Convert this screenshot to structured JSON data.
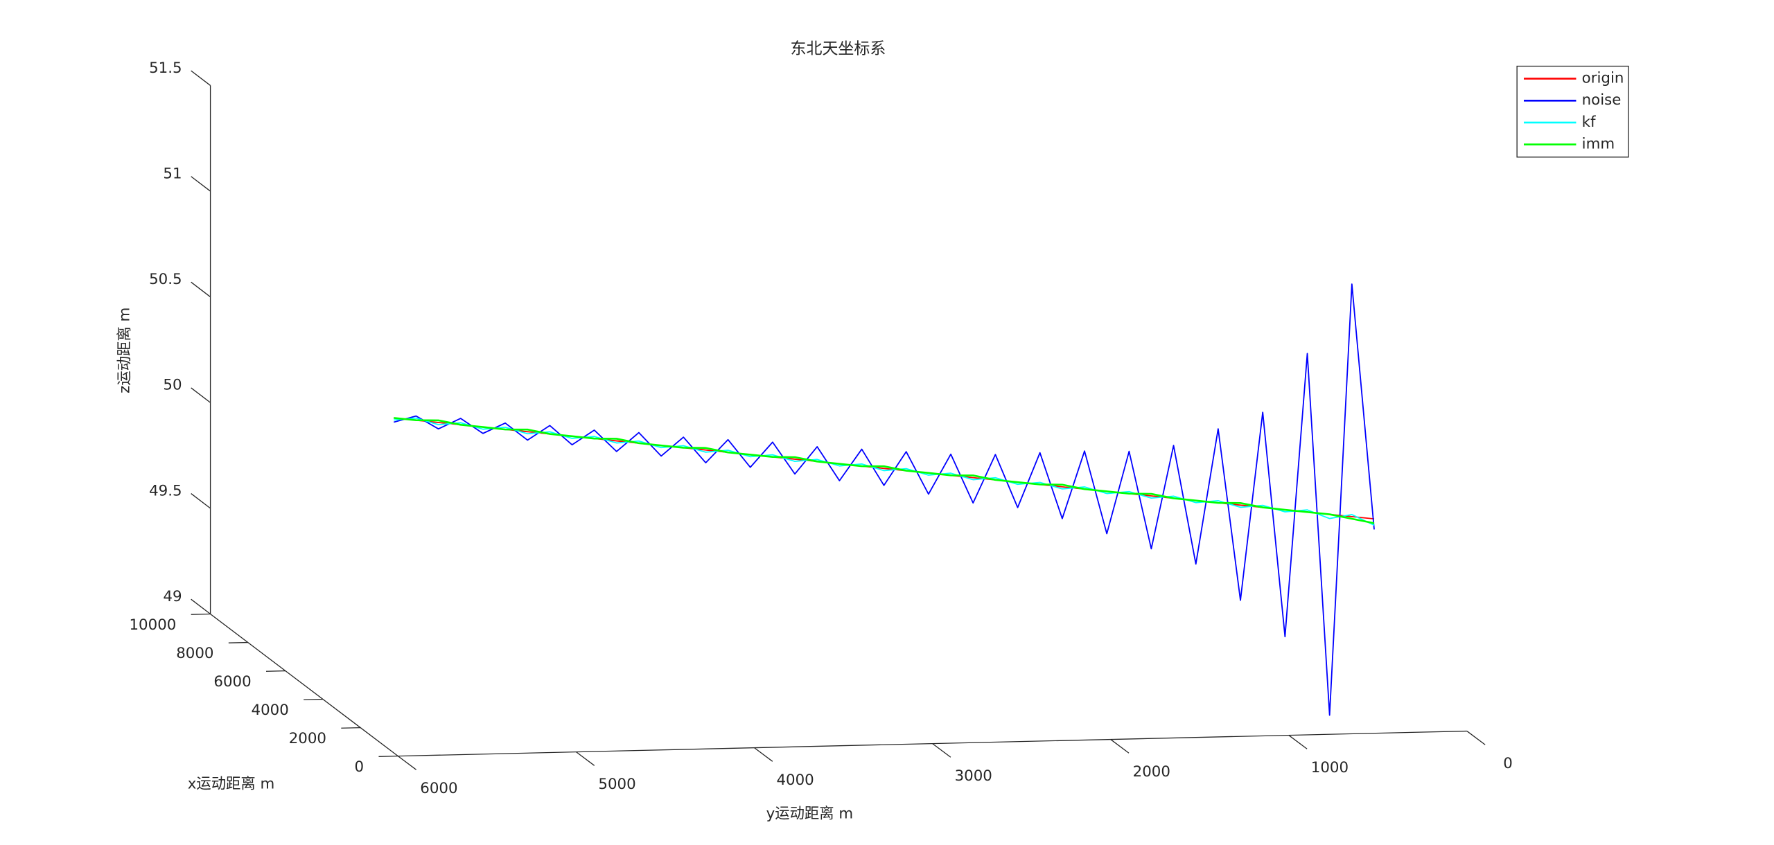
{
  "chart_data": {
    "type": "line3d",
    "title": "东北天坐标系",
    "xlabel": "x运动距离 m",
    "ylabel": "y运动距离 m",
    "zlabel": "z运动距离 m",
    "xlim": [
      0,
      10000
    ],
    "ylim": [
      0,
      6000
    ],
    "zlim": [
      49,
      51.5
    ],
    "xticks": [
      0,
      2000,
      4000,
      6000,
      8000,
      10000
    ],
    "yticks": [
      0,
      1000,
      2000,
      3000,
      4000,
      5000,
      6000
    ],
    "zticks": [
      49,
      49.5,
      50,
      50.5,
      51,
      51.5
    ],
    "legend": "upper right",
    "x": [
      200,
      248,
      296,
      344,
      392,
      440,
      488,
      536,
      584,
      632,
      680,
      728,
      776,
      824,
      872,
      920,
      968,
      1016,
      1064,
      1112,
      1160,
      1208,
      1256,
      1304,
      1352,
      1400,
      1448,
      1496,
      1544,
      1592,
      1640,
      1688,
      1736,
      1784,
      1832,
      1880,
      1928,
      1976,
      2024,
      2072,
      2120,
      2168,
      2216,
      2264,
      2312
    ],
    "y": [
      500,
      620,
      740,
      860,
      980,
      1100,
      1220,
      1340,
      1460,
      1580,
      1700,
      1820,
      1940,
      2060,
      2180,
      2300,
      2420,
      2540,
      2660,
      2780,
      2900,
      3020,
      3140,
      3260,
      3380,
      3500,
      3620,
      3740,
      3860,
      3980,
      4100,
      4220,
      4340,
      4460,
      4580,
      4700,
      4820,
      4940,
      5060,
      5180,
      5300,
      5420,
      5540,
      5660,
      5780
    ],
    "series": [
      {
        "name": "origin",
        "color": "#ff0000",
        "z": [
          50.0,
          50.01,
          50.02,
          50.03,
          50.04,
          50.05,
          50.06,
          50.07,
          50.08,
          50.09,
          50.1,
          50.11,
          50.12,
          50.13,
          50.14,
          50.15,
          50.16,
          50.17,
          50.18,
          50.19,
          50.2,
          50.21,
          50.22,
          50.23,
          50.24,
          50.25,
          50.26,
          50.27,
          50.28,
          50.29,
          50.3,
          50.31,
          50.32,
          50.33,
          50.34,
          50.35,
          50.36,
          50.37,
          50.38,
          50.39,
          50.4,
          50.41,
          50.42,
          50.43,
          50.44
        ]
      },
      {
        "name": "noise",
        "color": "#0000ff",
        "z": [
          49.95,
          51.11,
          49.07,
          50.78,
          49.44,
          50.5,
          49.61,
          50.42,
          49.78,
          50.34,
          49.85,
          50.31,
          49.92,
          50.31,
          49.99,
          50.3,
          50.04,
          50.29,
          50.06,
          50.29,
          50.1,
          50.3,
          50.14,
          50.31,
          50.16,
          50.32,
          50.19,
          50.34,
          50.22,
          50.35,
          50.24,
          50.36,
          50.27,
          50.38,
          50.29,
          50.39,
          50.32,
          50.41,
          50.34,
          50.42,
          50.37,
          50.44,
          50.39,
          50.45,
          50.42
        ]
      },
      {
        "name": "kf",
        "color": "#00ffff",
        "z": [
          49.97,
          50.02,
          50.0,
          50.04,
          50.03,
          50.06,
          50.05,
          50.08,
          50.07,
          50.1,
          50.09,
          50.12,
          50.11,
          50.14,
          50.13,
          50.16,
          50.15,
          50.18,
          50.17,
          50.2,
          50.19,
          50.22,
          50.21,
          50.24,
          50.23,
          50.26,
          50.25,
          50.28,
          50.27,
          50.3,
          50.29,
          50.32,
          50.31,
          50.34,
          50.33,
          50.36,
          50.35,
          50.38,
          50.37,
          50.4,
          50.39,
          50.42,
          50.41,
          50.44,
          50.43
        ]
      },
      {
        "name": "imm",
        "color": "#00ff00",
        "z": [
          49.98,
          50.0,
          50.02,
          50.03,
          50.04,
          50.05,
          50.07,
          50.07,
          50.08,
          50.09,
          50.11,
          50.11,
          50.12,
          50.13,
          50.15,
          50.15,
          50.16,
          50.17,
          50.19,
          50.19,
          50.2,
          50.21,
          50.23,
          50.23,
          50.24,
          50.25,
          50.27,
          50.27,
          50.28,
          50.29,
          50.31,
          50.31,
          50.32,
          50.33,
          50.35,
          50.35,
          50.36,
          50.37,
          50.39,
          50.39,
          50.4,
          50.41,
          50.43,
          50.43,
          50.44
        ]
      }
    ]
  }
}
